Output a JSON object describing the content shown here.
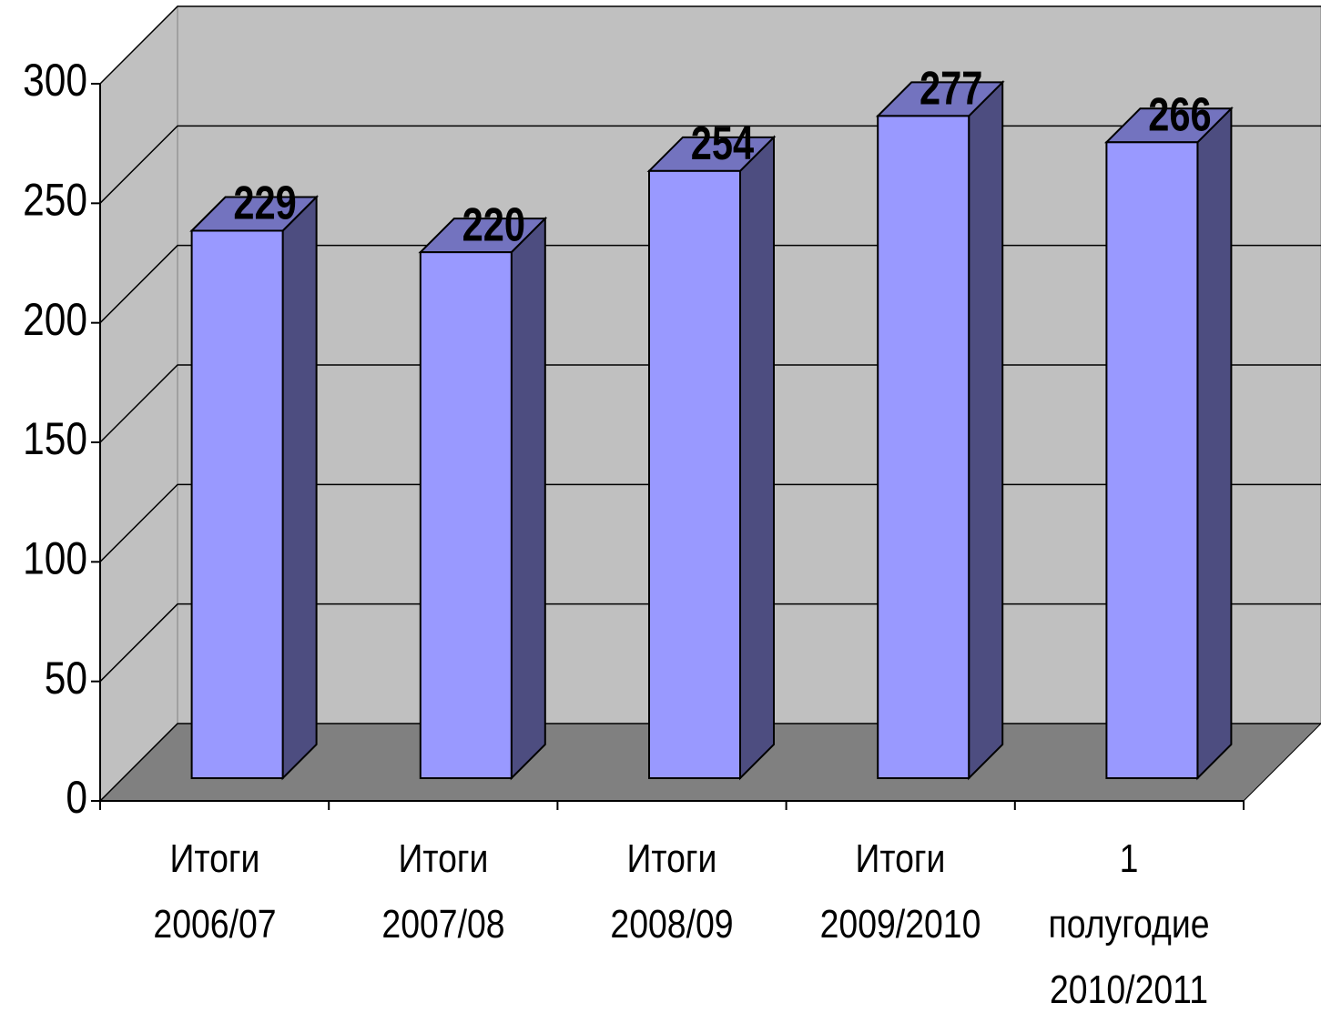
{
  "chart_data": {
    "type": "bar",
    "categories": [
      "Итоги 2006/07",
      "Итоги 2007/08",
      "Итоги 2008/09",
      "Итоги 2009/2010",
      "1 полугодие 2010/2011"
    ],
    "values": [
      229,
      220,
      254,
      277,
      266
    ],
    "color": "#9999ff",
    "ylim": [
      0,
      300
    ],
    "yticks": [
      0,
      50,
      100,
      150,
      200,
      250,
      300
    ],
    "grid": true
  }
}
